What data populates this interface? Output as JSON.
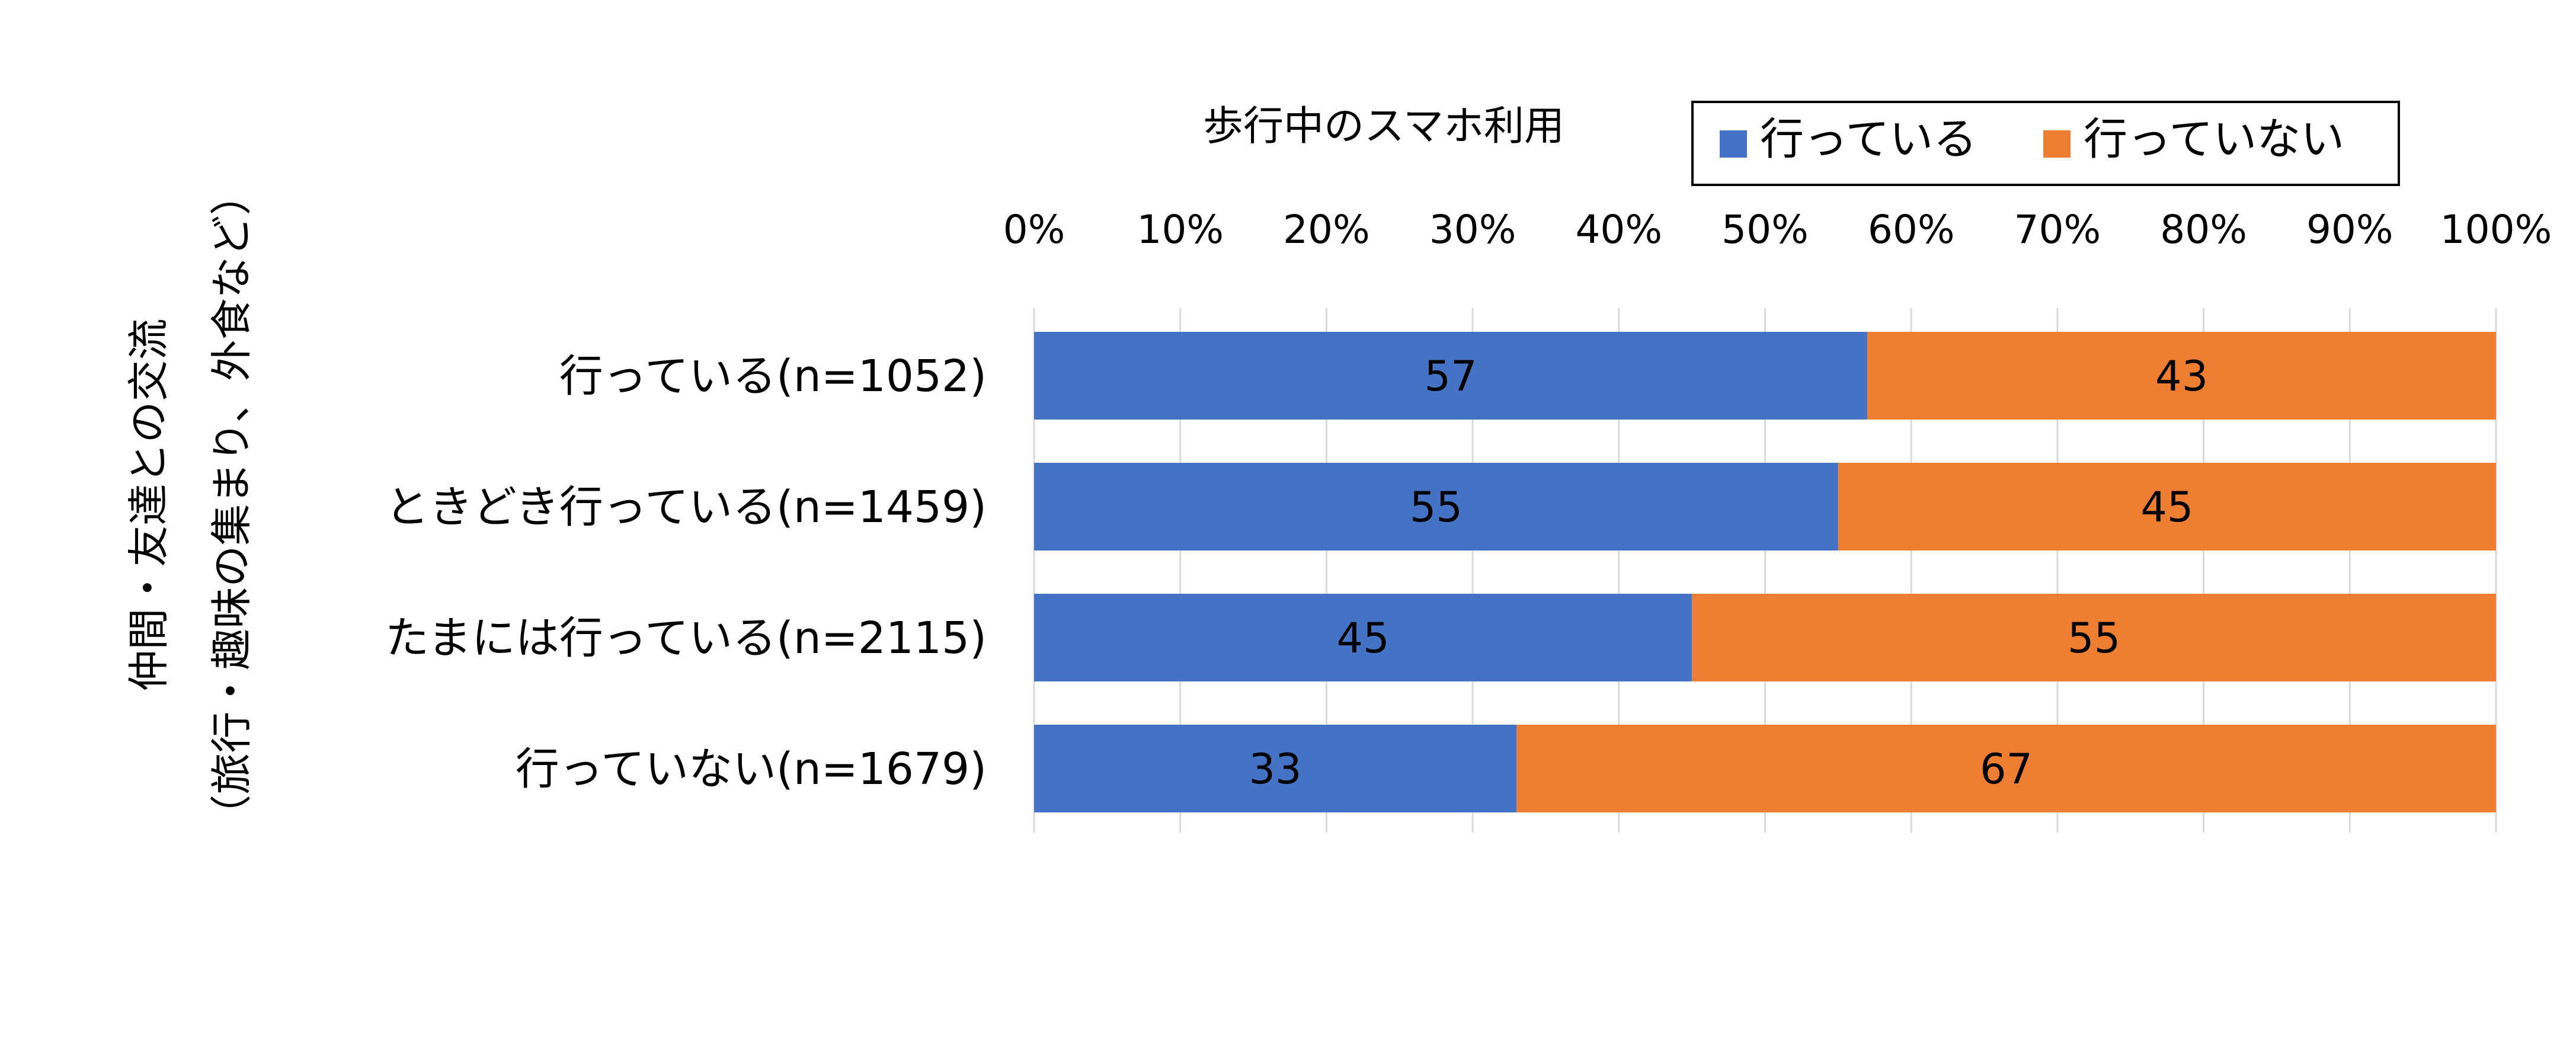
{
  "chart_data": {
    "type": "bar",
    "orientation": "horizontal",
    "stacked": "percent",
    "title": "",
    "xlabel": "歩行中のスマホ利用",
    "ylabel": [
      "仲間・友達との交流",
      "（旅行・趣味の集まり、外食など）"
    ],
    "xlim": [
      0,
      100
    ],
    "x_ticks": [
      "0%",
      "10%",
      "20%",
      "30%",
      "40%",
      "50%",
      "60%",
      "70%",
      "80%",
      "90%",
      "100%"
    ],
    "grid": true,
    "legend_position": "top-right",
    "categories": [
      "行っている(n=1052)",
      "ときどき行っている(n=1459)",
      "たまには行っている(n=2115)",
      "行っていない(n=1679)"
    ],
    "series": [
      {
        "name": "行っている",
        "color": "#4472C4",
        "values": [
          57,
          55,
          45,
          33
        ]
      },
      {
        "name": "行っていない",
        "color": "#ED7D31",
        "values": [
          43,
          45,
          55,
          67
        ]
      }
    ]
  }
}
